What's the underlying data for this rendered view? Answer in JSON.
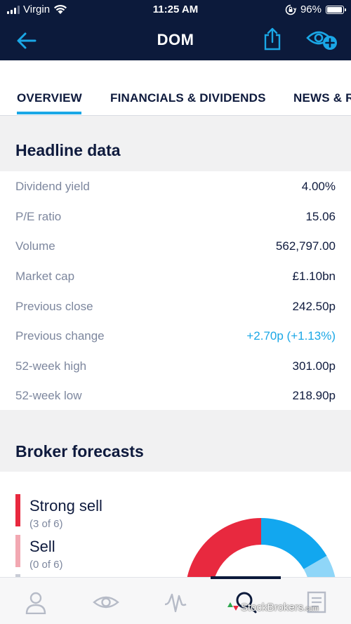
{
  "status_bar": {
    "carrier": "Virgin",
    "time": "11:25 AM",
    "battery": "96%",
    "battery_level": 0.96
  },
  "nav": {
    "title": "DOM"
  },
  "tabs": [
    {
      "label": "OVERVIEW",
      "active": true
    },
    {
      "label": "FINANCIALS & DIVIDENDS",
      "active": false
    },
    {
      "label": "NEWS & RE",
      "active": false
    }
  ],
  "headline": {
    "title": "Headline data",
    "rows": [
      {
        "label": "Dividend yield",
        "value": "4.00%"
      },
      {
        "label": "P/E ratio",
        "value": "15.06"
      },
      {
        "label": "Volume",
        "value": "562,797.00"
      },
      {
        "label": "Market cap",
        "value": "£1.10bn"
      },
      {
        "label": "Previous close",
        "value": "242.50p"
      },
      {
        "label": "Previous change",
        "value": "+2.70p (+1.13%)"
      },
      {
        "label": "52-week high",
        "value": "301.00p"
      },
      {
        "label": "52-week low",
        "value": "218.90p"
      }
    ]
  },
  "forecasts": {
    "title": "Broker forecasts",
    "items": [
      {
        "label": "Strong sell",
        "count": "(3 of 6)",
        "color": "#e8293f"
      },
      {
        "label": "Sell",
        "count": "(0 of 6)",
        "color": "#f2a8b2"
      }
    ],
    "gauge": {
      "segments": [
        {
          "color": "#e8293f",
          "share": 0.5
        },
        {
          "color": "#12a7ef",
          "share": 0.333
        },
        {
          "color": "#8fd6f8",
          "share": 0.167
        }
      ]
    }
  },
  "bottom_tabs": [
    {
      "icon": "person-icon"
    },
    {
      "icon": "eye-icon"
    },
    {
      "icon": "pulse-icon"
    },
    {
      "icon": "search-icon",
      "active": true
    },
    {
      "icon": "document-icon"
    }
  ],
  "watermark": {
    "text": "StockBrokers",
    "suffix": ".com"
  }
}
